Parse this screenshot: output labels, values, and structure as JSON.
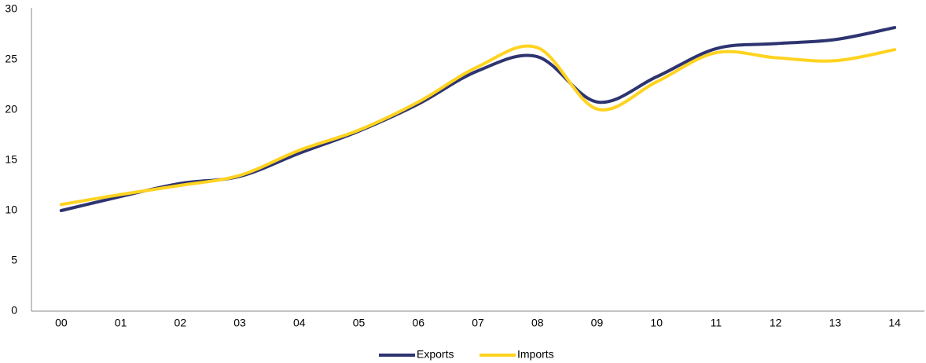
{
  "chart_data": {
    "type": "line",
    "categories": [
      "00",
      "01",
      "02",
      "03",
      "04",
      "05",
      "06",
      "07",
      "08",
      "09",
      "10",
      "11",
      "12",
      "13",
      "14"
    ],
    "series": [
      {
        "name": "Exports",
        "color": "#2e3470",
        "values": [
          10.0,
          11.4,
          12.7,
          13.4,
          15.7,
          17.9,
          20.6,
          23.9,
          25.3,
          20.8,
          23.3,
          26.1,
          26.6,
          27.0,
          28.2
        ]
      },
      {
        "name": "Imports",
        "color": "#ffd320",
        "values": [
          10.6,
          11.6,
          12.5,
          13.5,
          16.0,
          18.0,
          20.8,
          24.3,
          26.2,
          20.1,
          22.8,
          25.7,
          25.2,
          24.9,
          26.0
        ]
      }
    ],
    "ylim": [
      0,
      30
    ],
    "yticks": [
      0,
      5,
      10,
      15,
      20,
      25,
      30
    ],
    "grid": false,
    "smooth": true,
    "legend": "bottom"
  }
}
